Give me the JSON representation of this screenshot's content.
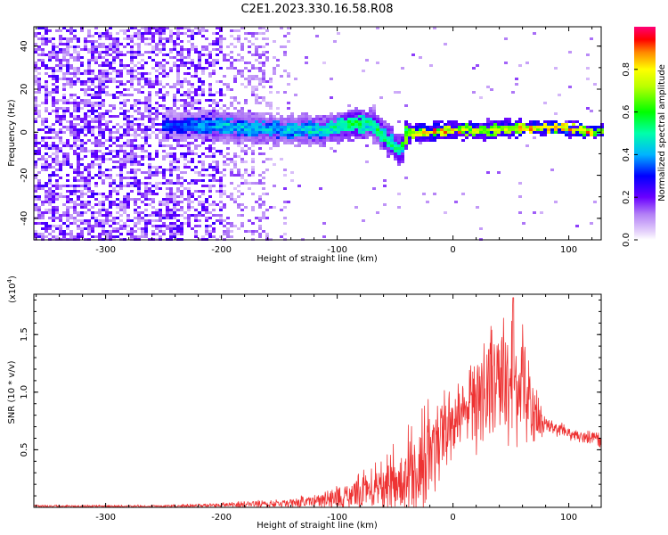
{
  "figure": {
    "title": "C2E1.2023.330.16.58.R08"
  },
  "chart_data": [
    {
      "type": "heatmap",
      "xlabel": "Height of straight line (km)",
      "ylabel": "Frequency (Hz)",
      "xlim": [
        -362,
        128
      ],
      "ylim": [
        -50,
        49
      ],
      "x_ticks": [
        "-300",
        "-200",
        "-100",
        "0",
        "100"
      ],
      "x_tick_values": [
        -300,
        -200,
        -100,
        0,
        100
      ],
      "y_ticks": [
        "-40",
        "-20",
        "0",
        "20",
        "40"
      ],
      "y_tick_values": [
        -40,
        -20,
        0,
        20,
        40
      ],
      "colorbar": {
        "label": "Normalized spectral amplitude",
        "ticks": [
          "0.0",
          "0.2",
          "0.4",
          "0.6",
          "0.8"
        ],
        "tick_values": [
          0.0,
          0.2,
          0.4,
          0.6,
          0.8
        ],
        "range": [
          0,
          1
        ],
        "colormap": [
          "#ffffff",
          "#e8d4fb",
          "#b88cf5",
          "#7e22f2",
          "#5a00ff",
          "#0000ff",
          "#00c8ff",
          "#00ff66",
          "#66ff00",
          "#ffff00",
          "#ff8800",
          "#ff0000",
          "#ff0066"
        ]
      },
      "ridge": {
        "description_x": [
          -240,
          -200,
          -150,
          -110,
          -85,
          -70,
          -55,
          -45,
          -40,
          -20,
          0,
          30,
          60,
          65,
          90,
          128
        ],
        "frequency": [
          3,
          3,
          1,
          1,
          4,
          4,
          -4,
          -9,
          0,
          0,
          1,
          1,
          2,
          2,
          2,
          0
        ],
        "amplitude": [
          0.35,
          0.45,
          0.45,
          0.5,
          0.6,
          0.55,
          0.6,
          0.55,
          0.8,
          0.9,
          0.85,
          0.8,
          0.85,
          0.9,
          0.95,
          0.8
        ]
      },
      "accent_color": "#5a00ff"
    },
    {
      "type": "line",
      "xlabel": "Height of straight line (km)",
      "ylabel": "SNR (10 * v/v)",
      "y_multiplier": "(x10",
      "y_multiplier_exp": "4",
      "y_multiplier_close": ")",
      "xlim": [
        -362,
        128
      ],
      "ylim": [
        0,
        1.85
      ],
      "x_ticks": [
        "-300",
        "-200",
        "-100",
        "0",
        "100"
      ],
      "x_tick_values": [
        -300,
        -200,
        -100,
        0,
        100
      ],
      "y_ticks": [
        "0.5",
        "1.0",
        "1.5"
      ],
      "y_tick_values": [
        0.5,
        1.0,
        1.5
      ],
      "series": [
        {
          "color": "#ee3333",
          "envelope_x": [
            -362,
            -250,
            -200,
            -150,
            -120,
            -100,
            -80,
            -60,
            -40,
            -30,
            -20,
            -10,
            0,
            10,
            20,
            30,
            40,
            50,
            55,
            60,
            70,
            75,
            80,
            90,
            100,
            110,
            120,
            128
          ],
          "envelope_mean": [
            0.01,
            0.01,
            0.02,
            0.03,
            0.05,
            0.08,
            0.13,
            0.2,
            0.28,
            0.35,
            0.45,
            0.62,
            0.75,
            0.85,
            0.95,
            1.05,
            1.1,
            1.15,
            1.1,
            1.0,
            0.85,
            0.75,
            0.72,
            0.68,
            0.65,
            0.62,
            0.6,
            0.58
          ],
          "envelope_spread": [
            0.01,
            0.01,
            0.02,
            0.04,
            0.06,
            0.1,
            0.16,
            0.24,
            0.35,
            0.4,
            0.45,
            0.35,
            0.3,
            0.35,
            0.4,
            0.45,
            0.5,
            0.55,
            0.55,
            0.5,
            0.35,
            0.15,
            0.08,
            0.06,
            0.06,
            0.06,
            0.06,
            0.06
          ],
          "peak": {
            "x": 52,
            "y": 1.82
          }
        }
      ]
    }
  ]
}
